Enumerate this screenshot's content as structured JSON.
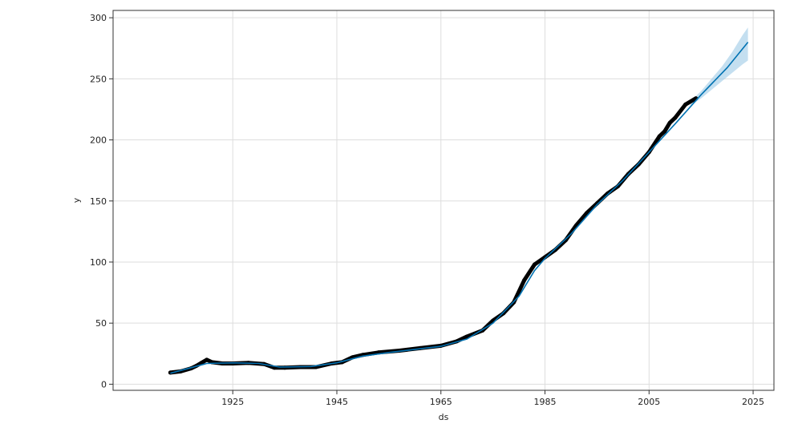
{
  "chart_data": {
    "type": "line",
    "title": "",
    "xlabel": "ds",
    "ylabel": "y",
    "xlim": [
      1902,
      2029
    ],
    "ylim": [
      -5,
      306
    ],
    "x_ticks": [
      1925,
      1945,
      1965,
      1985,
      2005,
      2025
    ],
    "y_ticks": [
      0,
      50,
      100,
      150,
      200,
      250,
      300
    ],
    "grid": true,
    "legend": "none",
    "colors": {
      "observed": "#000000",
      "forecast": "#0072B2",
      "interval": "#9DC9E6"
    },
    "series": [
      {
        "role": "observed points",
        "x": [
          1913,
          1915,
          1917,
          1918,
          1919,
          1920,
          1921,
          1923,
          1925,
          1928,
          1931,
          1933,
          1935,
          1938,
          1941,
          1944,
          1946,
          1948,
          1950,
          1953,
          1957,
          1961,
          1965,
          1968,
          1970,
          1973,
          1975,
          1977,
          1979,
          1981,
          1983,
          1985,
          1987,
          1989,
          1991,
          1993,
          1995,
          1997,
          1999,
          2001,
          2003,
          2005,
          2007,
          2008,
          2009,
          2010,
          2012,
          2014
        ],
        "y": [
          9.5,
          10.5,
          13,
          15,
          17.5,
          20,
          18,
          17,
          17,
          17.5,
          16.5,
          13.5,
          13.5,
          14,
          14,
          17,
          18,
          22,
          24,
          26,
          27.5,
          29.5,
          31.5,
          35,
          39,
          44,
          52,
          58,
          67,
          85,
          98,
          104,
          110,
          118,
          130,
          140,
          148,
          156,
          162,
          172,
          180,
          190,
          203,
          207,
          214,
          218,
          229,
          234
        ]
      },
      {
        "role": "forecast line",
        "x": [
          1913,
          1920,
          1925,
          1930,
          1934,
          1940,
          1945,
          1950,
          1955,
          1960,
          1965,
          1970,
          1975,
          1980,
          1983,
          1985,
          1990,
          1995,
          2000,
          2005,
          2010,
          2015,
          2020,
          2024
        ],
        "y": [
          9,
          17,
          17.5,
          17,
          14,
          14.5,
          17.5,
          23,
          26,
          28.5,
          31,
          37,
          50,
          72,
          93,
          103,
          123,
          147,
          167,
          190,
          213,
          237,
          259,
          280
        ]
      },
      {
        "role": "uncertainty interval",
        "x": [
          2013,
          2015,
          2017,
          2019,
          2021,
          2023,
          2024
        ],
        "y_upper": [
          232,
          240,
          250,
          260,
          272,
          286,
          292
        ],
        "y_lower": [
          228,
          234,
          241,
          248,
          255,
          262,
          265
        ]
      }
    ]
  }
}
